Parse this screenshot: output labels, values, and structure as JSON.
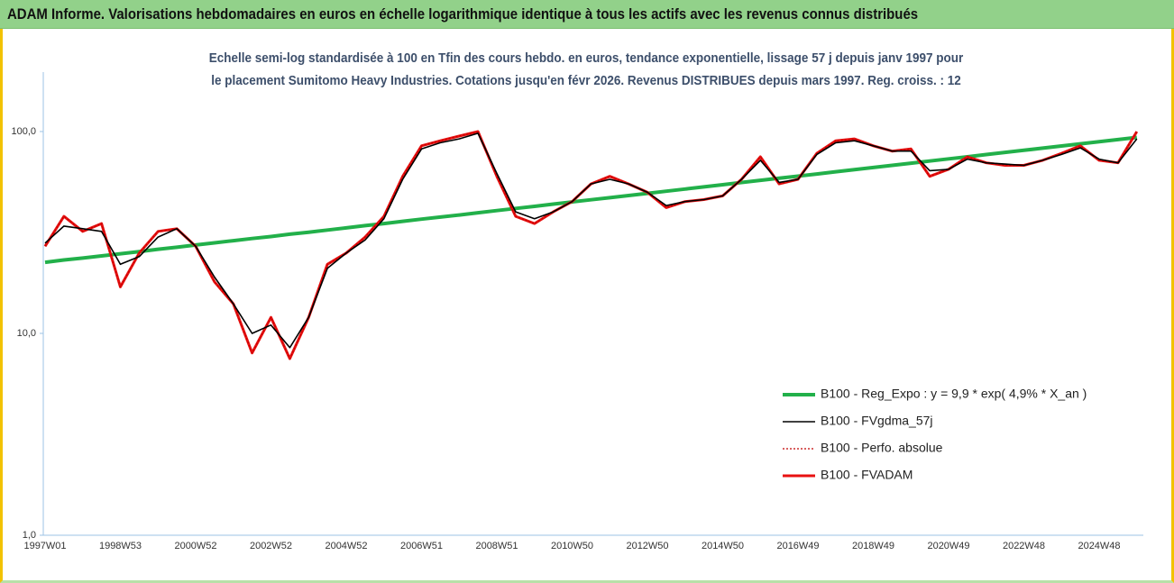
{
  "chart_data": {
    "type": "line",
    "title": "ADAM Informe. Valorisations hebdomadaires en euros en échelle logarithmique identique à tous les actifs avec les revenus connus distribués",
    "subtitle": "Echelle semi-log standardisée à 100 en Tfin des cours hebdo. en euros, tendance exponentielle, lissage 57 j depuis janv 1997 pour le placement Sumitomo Heavy Industries. Cotations jusqu'en févr 2026. Revenus DISTRIBUES depuis mars 1997. Reg. croiss. : 12",
    "categories": [
      "1997W01",
      null,
      null,
      null,
      "1998W53",
      null,
      null,
      null,
      "2000W52",
      null,
      null,
      null,
      "2002W52",
      null,
      null,
      null,
      "2004W52",
      null,
      null,
      null,
      "2006W51",
      null,
      null,
      null,
      "2008W51",
      null,
      null,
      null,
      "2010W50",
      null,
      null,
      null,
      "2012W50",
      null,
      null,
      null,
      "2014W50",
      null,
      null,
      null,
      "2016W49",
      null,
      null,
      null,
      "2018W49",
      null,
      null,
      null,
      "2020W49",
      null,
      null,
      null,
      "2022W48",
      null,
      null,
      null,
      "2024W48",
      null,
      null
    ],
    "series": [
      {
        "name": "B100 - Reg_Expo : y = 9,9 * exp( 4,9% *  X_an )",
        "color": "#22b04a",
        "values": [
          22.5,
          23.1,
          23.6,
          24.2,
          24.8,
          25.4,
          26.1,
          26.7,
          27.4,
          28.1,
          28.8,
          29.5,
          30.2,
          31.0,
          31.7,
          32.5,
          33.3,
          34.2,
          35.0,
          35.9,
          36.8,
          37.7,
          38.6,
          39.6,
          40.6,
          41.6,
          42.6,
          43.7,
          44.8,
          45.9,
          47.0,
          48.2,
          49.4,
          50.6,
          51.9,
          53.2,
          54.5,
          55.9,
          57.3,
          58.7,
          60.1,
          61.6,
          63.2,
          64.7,
          66.3,
          68.0,
          69.7,
          71.4,
          73.2,
          75.0,
          76.9,
          78.8,
          80.7,
          82.7,
          84.8,
          86.9,
          89.0,
          91.2,
          93.5
        ]
      },
      {
        "name": "B100 - FVgdma_57j",
        "color": "#000000",
        "values": [
          28,
          34,
          33,
          32,
          22,
          24,
          30,
          33,
          27,
          19,
          14,
          10,
          11,
          8.5,
          12,
          21,
          25,
          29,
          37,
          58,
          82,
          88,
          92,
          98,
          62,
          40,
          37,
          40,
          45,
          55,
          58,
          55,
          50,
          43,
          45,
          46,
          48,
          58,
          72,
          56,
          58,
          77,
          88,
          90,
          85,
          80,
          80,
          64,
          65,
          73,
          70,
          69,
          68,
          72,
          77,
          83,
          73,
          70,
          92
        ]
      },
      {
        "name": "B100 - Perfo. absolue",
        "color": "#c00000",
        "values": [
          27,
          38,
          32,
          35,
          17,
          25,
          32,
          33,
          27,
          18,
          14,
          8,
          12,
          7.5,
          12,
          22,
          25,
          30,
          38,
          60,
          85,
          90,
          95,
          100,
          60,
          38,
          35,
          40,
          45,
          55,
          60,
          55,
          50,
          42,
          45,
          46,
          48,
          58,
          75,
          55,
          58,
          78,
          90,
          92,
          85,
          80,
          82,
          60,
          65,
          75,
          70,
          68,
          68,
          72,
          78,
          85,
          72,
          70,
          100
        ]
      },
      {
        "name": "B100 - FVADAM",
        "color": "#e81010",
        "values": [
          27,
          38,
          32,
          35,
          17,
          25,
          32,
          33,
          27,
          18,
          14,
          8,
          12,
          7.5,
          12,
          22,
          25,
          30,
          38,
          60,
          85,
          90,
          95,
          100,
          60,
          38,
          35,
          40,
          45,
          55,
          60,
          55,
          50,
          42,
          45,
          46,
          48,
          58,
          75,
          55,
          58,
          78,
          90,
          92,
          85,
          80,
          82,
          60,
          65,
          75,
          70,
          68,
          68,
          72,
          78,
          85,
          72,
          70,
          100
        ]
      }
    ],
    "log_scale": true,
    "ylim": [
      1,
      197
    ],
    "yticks": [
      {
        "value": 1,
        "label": "1,0"
      },
      {
        "value": 10,
        "label": "10,0"
      },
      {
        "value": 100,
        "label": "100,0"
      }
    ],
    "legend": "lower right"
  }
}
